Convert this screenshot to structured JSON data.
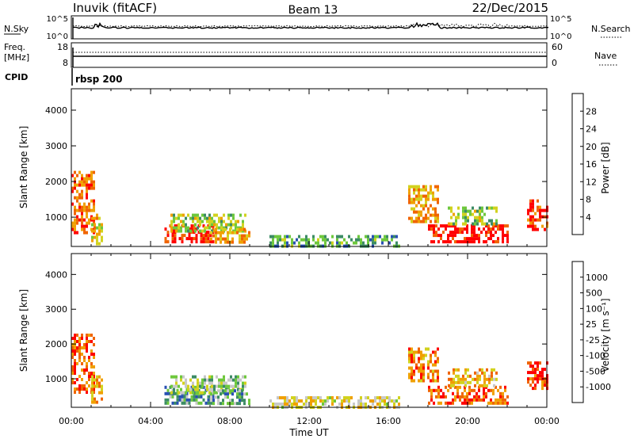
{
  "header": {
    "station": "Inuvik (fitACF)",
    "beam": "Beam 13",
    "date": "22/Dec/2015"
  },
  "top_panels": {
    "nsky_label": "N.Sky",
    "nsky_ticks": [
      "10^5",
      "10^0"
    ],
    "nsearch_label": "N.Search",
    "nsearch_ticks": [
      "10^5",
      "10^0"
    ],
    "freq_label_1": "Freq.",
    "freq_label_2": "[MHz]",
    "freq_ticks": [
      "18",
      "8"
    ],
    "nave_label": "Nave",
    "nave_ticks": [
      "60",
      "0"
    ],
    "cpid_label": "CPID",
    "cpid_value": "rbsp 200"
  },
  "colors": {
    "power": [
      "#0020ff",
      "#2850b4",
      "#3c8c64",
      "#6ec83c",
      "#d2d21e",
      "#f0a000",
      "#f06400",
      "#ff0000"
    ],
    "velocity": [
      "#ff0000",
      "#f06400",
      "#f0a000",
      "#d2d21e",
      "#c8c8c8",
      "#6ec83c",
      "#3c8c64",
      "#2850b4",
      "#0020ff"
    ]
  },
  "chart_data": [
    {
      "type": "heatmap",
      "title": "",
      "xlabel": "",
      "ylabel": "Slant Range [km]",
      "xlim_hours": [
        0,
        24
      ],
      "ylim": [
        180,
        4600
      ],
      "y_ticks": [
        "1000",
        "2000",
        "3000",
        "4000"
      ],
      "colorbar_label": "Power [dB]",
      "colorbar_ticks": [
        "4",
        "8",
        "12",
        "16",
        "20",
        "24",
        "28"
      ],
      "colorbar_range": [
        0,
        32
      ],
      "regions": [
        {
          "t0": 0.0,
          "t1": 1.2,
          "r0": 600,
          "r1": 2300,
          "level": 0.8
        },
        {
          "t0": 1.0,
          "t1": 1.6,
          "r0": 300,
          "r1": 1100,
          "level": 0.6
        },
        {
          "t0": 4.7,
          "t1": 7.2,
          "r0": 300,
          "r1": 800,
          "level": 0.95
        },
        {
          "t0": 5.0,
          "t1": 8.8,
          "r0": 600,
          "r1": 1100,
          "level": 0.5
        },
        {
          "t0": 7.0,
          "t1": 9.0,
          "r0": 300,
          "r1": 700,
          "level": 0.7
        },
        {
          "t0": 10.0,
          "t1": 16.5,
          "r0": 180,
          "r1": 500,
          "level": 0.35
        },
        {
          "t0": 17.0,
          "t1": 18.5,
          "r0": 900,
          "r1": 1900,
          "level": 0.7
        },
        {
          "t0": 18.0,
          "t1": 22.0,
          "r0": 300,
          "r1": 800,
          "level": 0.95
        },
        {
          "t0": 19.0,
          "t1": 21.5,
          "r0": 800,
          "r1": 1300,
          "level": 0.5
        },
        {
          "t0": 23.0,
          "t1": 24.0,
          "r0": 700,
          "r1": 1500,
          "level": 0.85
        }
      ]
    },
    {
      "type": "heatmap",
      "title": "",
      "xlabel": "Time UT",
      "ylabel": "Slant Range [km]",
      "xlim_hours": [
        0,
        24
      ],
      "ylim": [
        180,
        4600
      ],
      "x_ticks": [
        "00:00",
        "04:00",
        "08:00",
        "12:00",
        "16:00",
        "20:00",
        "00:00"
      ],
      "y_ticks": [
        "1000",
        "2000",
        "3000",
        "4000"
      ],
      "colorbar_label": "Velocity [m s⁻¹]",
      "colorbar_ticks": [
        "-1000",
        "-500",
        "-100",
        "-25",
        "25",
        "100",
        "500",
        "1000"
      ],
      "regions": [
        {
          "t0": 0.0,
          "t1": 1.2,
          "r0": 600,
          "r1": 2300,
          "level": 0.15
        },
        {
          "t0": 1.0,
          "t1": 1.6,
          "r0": 300,
          "r1": 1100,
          "level": 0.3
        },
        {
          "t0": 4.7,
          "t1": 7.2,
          "r0": 300,
          "r1": 800,
          "level": 0.7
        },
        {
          "t0": 5.0,
          "t1": 8.8,
          "r0": 600,
          "r1": 1100,
          "level": 0.55
        },
        {
          "t0": 7.0,
          "t1": 9.0,
          "r0": 300,
          "r1": 700,
          "level": 0.65
        },
        {
          "t0": 10.0,
          "t1": 16.5,
          "r0": 180,
          "r1": 500,
          "level": 0.4
        },
        {
          "t0": 17.0,
          "t1": 18.5,
          "r0": 900,
          "r1": 1900,
          "level": 0.2
        },
        {
          "t0": 18.0,
          "t1": 22.0,
          "r0": 300,
          "r1": 800,
          "level": 0.15
        },
        {
          "t0": 19.0,
          "t1": 21.5,
          "r0": 800,
          "r1": 1300,
          "level": 0.3
        },
        {
          "t0": 23.0,
          "t1": 24.0,
          "r0": 700,
          "r1": 1500,
          "level": 0.1
        }
      ]
    }
  ]
}
